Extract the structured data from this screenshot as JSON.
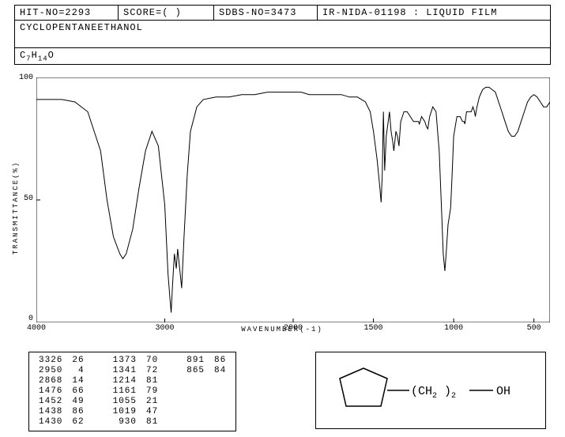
{
  "header": {
    "hit_no_label": "HIT-NO=",
    "hit_no": "2293",
    "score_label": "SCORE=",
    "score": "(  )",
    "sdbs_label": "SDBS-NO=",
    "sdbs_no": "3473",
    "ir_id": "IR-NIDA-01198 : LIQUID FILM",
    "compound": "CYCLOPENTANEETHANOL",
    "formula_parts": [
      "C",
      "7",
      "H",
      "14",
      "O"
    ]
  },
  "chart": {
    "ylabel": "TRANSMITTANCE(%)",
    "xlabel": "WAVENUMBER(-1)",
    "ylim": [
      0,
      100
    ],
    "yticks": [
      0,
      50,
      100
    ],
    "xlim": [
      4000,
      400
    ],
    "xticks": [
      4000,
      3000,
      2000,
      1500,
      1000,
      500
    ],
    "axis_color": "#000000",
    "line_color": "#000000",
    "background": "#ffffff",
    "points_wavenumber_transmittance": [
      [
        4000,
        91
      ],
      [
        3900,
        91
      ],
      [
        3800,
        91
      ],
      [
        3700,
        90
      ],
      [
        3600,
        86
      ],
      [
        3500,
        70
      ],
      [
        3450,
        50
      ],
      [
        3400,
        35
      ],
      [
        3350,
        28
      ],
      [
        3326,
        26
      ],
      [
        3300,
        28
      ],
      [
        3250,
        38
      ],
      [
        3200,
        55
      ],
      [
        3150,
        70
      ],
      [
        3100,
        78
      ],
      [
        3050,
        72
      ],
      [
        3000,
        48
      ],
      [
        2975,
        20
      ],
      [
        2960,
        10
      ],
      [
        2950,
        4
      ],
      [
        2940,
        15
      ],
      [
        2925,
        28
      ],
      [
        2910,
        22
      ],
      [
        2900,
        30
      ],
      [
        2880,
        20
      ],
      [
        2868,
        14
      ],
      [
        2850,
        35
      ],
      [
        2825,
        60
      ],
      [
        2800,
        78
      ],
      [
        2750,
        88
      ],
      [
        2700,
        91
      ],
      [
        2600,
        92
      ],
      [
        2500,
        92
      ],
      [
        2400,
        93
      ],
      [
        2300,
        93
      ],
      [
        2200,
        94
      ],
      [
        2100,
        94
      ],
      [
        2000,
        94
      ],
      [
        1950,
        94
      ],
      [
        1900,
        93
      ],
      [
        1850,
        93
      ],
      [
        1800,
        93
      ],
      [
        1750,
        93
      ],
      [
        1700,
        93
      ],
      [
        1650,
        92
      ],
      [
        1600,
        92
      ],
      [
        1550,
        90
      ],
      [
        1520,
        86
      ],
      [
        1500,
        78
      ],
      [
        1480,
        68
      ],
      [
        1476,
        66
      ],
      [
        1460,
        55
      ],
      [
        1452,
        49
      ],
      [
        1445,
        60
      ],
      [
        1438,
        86
      ],
      [
        1430,
        62
      ],
      [
        1420,
        76
      ],
      [
        1400,
        86
      ],
      [
        1390,
        78
      ],
      [
        1380,
        74
      ],
      [
        1373,
        70
      ],
      [
        1360,
        78
      ],
      [
        1350,
        76
      ],
      [
        1341,
        72
      ],
      [
        1330,
        82
      ],
      [
        1310,
        86
      ],
      [
        1290,
        86
      ],
      [
        1270,
        84
      ],
      [
        1250,
        82
      ],
      [
        1230,
        82
      ],
      [
        1220,
        82
      ],
      [
        1214,
        81
      ],
      [
        1200,
        84
      ],
      [
        1180,
        82
      ],
      [
        1170,
        80
      ],
      [
        1161,
        79
      ],
      [
        1150,
        84
      ],
      [
        1130,
        88
      ],
      [
        1110,
        86
      ],
      [
        1090,
        70
      ],
      [
        1075,
        45
      ],
      [
        1065,
        28
      ],
      [
        1055,
        21
      ],
      [
        1045,
        30
      ],
      [
        1035,
        40
      ],
      [
        1025,
        44
      ],
      [
        1019,
        47
      ],
      [
        1010,
        60
      ],
      [
        1000,
        76
      ],
      [
        980,
        84
      ],
      [
        960,
        84
      ],
      [
        945,
        82
      ],
      [
        935,
        82
      ],
      [
        930,
        81
      ],
      [
        920,
        86
      ],
      [
        905,
        86
      ],
      [
        895,
        86
      ],
      [
        891,
        86
      ],
      [
        880,
        88
      ],
      [
        870,
        86
      ],
      [
        865,
        84
      ],
      [
        855,
        88
      ],
      [
        840,
        92
      ],
      [
        820,
        95
      ],
      [
        800,
        96
      ],
      [
        780,
        96
      ],
      [
        760,
        95
      ],
      [
        740,
        94
      ],
      [
        720,
        90
      ],
      [
        700,
        86
      ],
      [
        680,
        82
      ],
      [
        660,
        78
      ],
      [
        640,
        76
      ],
      [
        620,
        76
      ],
      [
        600,
        78
      ],
      [
        580,
        82
      ],
      [
        560,
        86
      ],
      [
        540,
        90
      ],
      [
        520,
        92
      ],
      [
        500,
        93
      ],
      [
        480,
        92
      ],
      [
        460,
        90
      ],
      [
        440,
        88
      ],
      [
        420,
        88
      ],
      [
        400,
        90
      ]
    ]
  },
  "peaks": {
    "columns": [
      [
        [
          3326,
          26
        ],
        [
          2950,
          4
        ],
        [
          2868,
          14
        ],
        [
          1476,
          66
        ],
        [
          1452,
          49
        ],
        [
          1438,
          86
        ],
        [
          1430,
          62
        ]
      ],
      [
        [
          1373,
          70
        ],
        [
          1341,
          72
        ],
        [
          1214,
          81
        ],
        [
          1161,
          79
        ],
        [
          1055,
          21
        ],
        [
          1019,
          47
        ],
        [
          930,
          81
        ]
      ],
      [
        [
          891,
          86
        ],
        [
          865,
          84
        ]
      ]
    ]
  },
  "structure": {
    "ch2_label": "(CH",
    "ch2_sub": "2",
    "ch2_after": ")",
    "ch2_count": "2",
    "oh_label": "OH"
  }
}
